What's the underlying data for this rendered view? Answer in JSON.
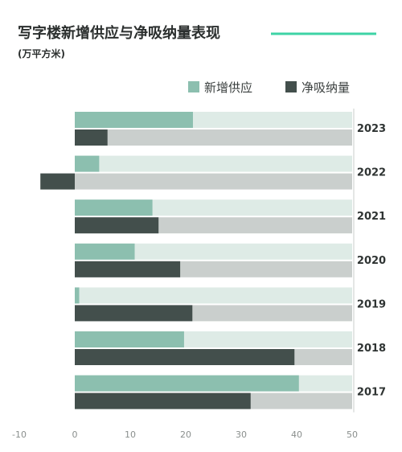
{
  "chart_data": {
    "type": "bar",
    "orientation": "horizontal",
    "title": "写字楼新增供应与净吸纳量表现",
    "subtitle": "(万平方米)",
    "categories": [
      "2023",
      "2022",
      "2021",
      "2020",
      "2019",
      "2018",
      "2017"
    ],
    "series": [
      {
        "name": "新增供应",
        "values": [
          21.3,
          4.4,
          14.0,
          10.8,
          0.8,
          19.7,
          40.4
        ]
      },
      {
        "name": "净吸纳量",
        "values": [
          5.9,
          -6.2,
          15.1,
          19.0,
          21.2,
          39.6,
          31.7
        ]
      }
    ],
    "xlim": [
      -10,
      50
    ],
    "xticks": [
      -10,
      0,
      10,
      20,
      30,
      40,
      50
    ],
    "legend_position": "top-right",
    "grid": false
  },
  "colors": {
    "supply": "#8cbfaf",
    "supply_track": "#deebe6",
    "absorption": "#434f4c",
    "absorption_track": "#cacfcd",
    "accent_line": "#3ed3a6",
    "divider": "#c8cccb"
  }
}
